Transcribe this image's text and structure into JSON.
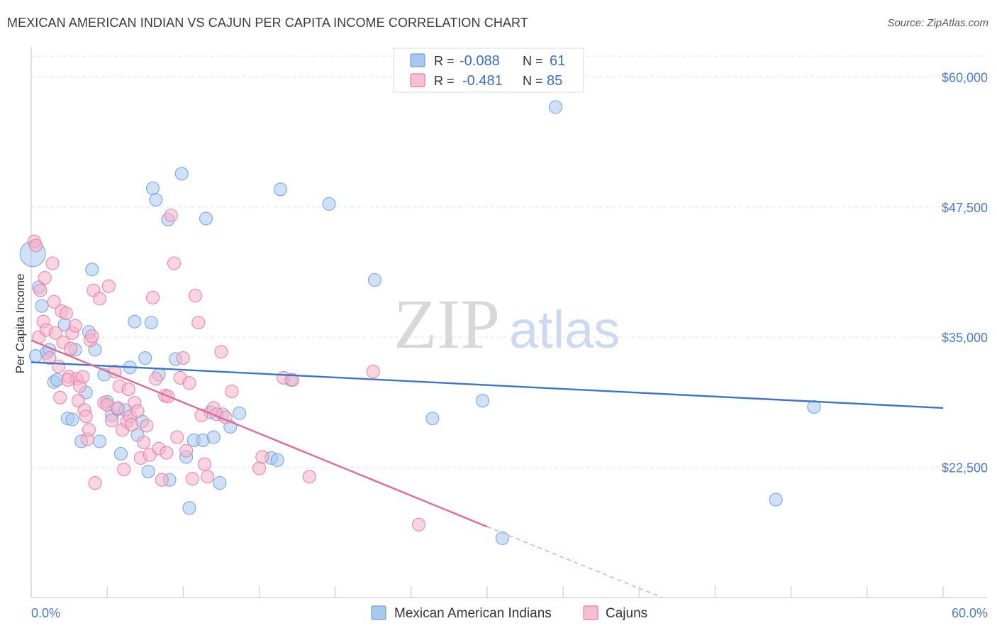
{
  "title": "MEXICAN AMERICAN INDIAN VS CAJUN PER CAPITA INCOME CORRELATION CHART",
  "source": "Source: ZipAtlas.com",
  "watermark": {
    "zip": "ZIP",
    "atlas": "atlas"
  },
  "legend": {
    "rows": [
      {
        "r_label": "R = ",
        "r_value": "-0.088",
        "n_label": "N = ",
        "n_value": "61",
        "color": "#a8c8f0"
      },
      {
        "r_label": "R = ",
        "r_value": "-0.481",
        "n_label": "N = ",
        "n_value": "85",
        "color": "#f5b3c8"
      }
    ]
  },
  "bottom_legend": [
    "Mexican American Indians",
    "Cajuns"
  ],
  "chart_data": {
    "type": "scatter",
    "title": "MEXICAN AMERICAN INDIAN VS CAJUN PER CAPITA INCOME CORRELATION CHART",
    "xlabel": "",
    "ylabel": "Per Capita Income",
    "xlim": [
      0,
      60
    ],
    "ylim": [
      10000,
      62000
    ],
    "x_tick_labels": [
      "0.0%",
      "60.0%"
    ],
    "y_ticks": [
      22500,
      35000,
      47500,
      60000
    ],
    "y_tick_labels": [
      "$22,500",
      "$35,000",
      "$47,500",
      "$60,000"
    ],
    "grid": true,
    "legend_position": "top-center",
    "series": [
      {
        "name": "Mexican American Indians",
        "color": "#6fa0e0",
        "fill": "#a8c8f0",
        "trend": {
          "x": [
            0,
            60
          ],
          "y": [
            32600,
            28200
          ]
        },
        "points": [
          [
            0.1,
            43000
          ],
          [
            0.5,
            39800
          ],
          [
            0.7,
            38000
          ],
          [
            1.0,
            33500
          ],
          [
            1.2,
            33800
          ],
          [
            1.5,
            30700
          ],
          [
            1.7,
            30900
          ],
          [
            2.2,
            36200
          ],
          [
            2.4,
            27200
          ],
          [
            2.7,
            27100
          ],
          [
            2.9,
            33800
          ],
          [
            3.3,
            25000
          ],
          [
            3.6,
            29700
          ],
          [
            3.8,
            35500
          ],
          [
            4.0,
            41500
          ],
          [
            4.2,
            33800
          ],
          [
            4.5,
            25000
          ],
          [
            4.8,
            31400
          ],
          [
            5.0,
            28800
          ],
          [
            5.3,
            27500
          ],
          [
            5.7,
            28100
          ],
          [
            5.9,
            23800
          ],
          [
            6.2,
            28000
          ],
          [
            6.5,
            32100
          ],
          [
            6.8,
            36500
          ],
          [
            7.0,
            25600
          ],
          [
            7.3,
            26900
          ],
          [
            7.5,
            33000
          ],
          [
            7.7,
            22100
          ],
          [
            7.9,
            36400
          ],
          [
            8.0,
            49300
          ],
          [
            8.2,
            48200
          ],
          [
            8.4,
            31400
          ],
          [
            9.0,
            46300
          ],
          [
            9.1,
            21300
          ],
          [
            9.5,
            32900
          ],
          [
            9.9,
            50700
          ],
          [
            10.2,
            23500
          ],
          [
            10.4,
            18600
          ],
          [
            10.7,
            25100
          ],
          [
            11.3,
            25100
          ],
          [
            11.5,
            46400
          ],
          [
            11.8,
            27800
          ],
          [
            12.0,
            25400
          ],
          [
            12.4,
            21000
          ],
          [
            12.6,
            27600
          ],
          [
            13.1,
            26400
          ],
          [
            13.7,
            27700
          ],
          [
            15.8,
            23400
          ],
          [
            16.2,
            23200
          ],
          [
            16.4,
            49200
          ],
          [
            17.1,
            30900
          ],
          [
            19.6,
            47800
          ],
          [
            22.6,
            40500
          ],
          [
            26.4,
            27200
          ],
          [
            29.7,
            28900
          ],
          [
            34.5,
            57100
          ],
          [
            51.5,
            28300
          ],
          [
            49.0,
            19400
          ],
          [
            31.0,
            15700
          ],
          [
            0.3,
            33200
          ]
        ]
      },
      {
        "name": "Cajuns",
        "color": "#e87aa0",
        "fill": "#f5b3c8",
        "trend": {
          "x": [
            0,
            30
          ],
          "y": [
            34700,
            16800
          ]
        },
        "trend_dashed": {
          "x": [
            30,
            41.5
          ],
          "y": [
            16800,
            10000
          ]
        },
        "points": [
          [
            0.2,
            44200
          ],
          [
            0.3,
            43800
          ],
          [
            0.5,
            35000
          ],
          [
            0.6,
            39500
          ],
          [
            0.8,
            36500
          ],
          [
            0.9,
            40700
          ],
          [
            1.0,
            35700
          ],
          [
            1.2,
            33000
          ],
          [
            1.4,
            42100
          ],
          [
            1.5,
            38400
          ],
          [
            1.6,
            35400
          ],
          [
            1.8,
            32200
          ],
          [
            1.9,
            29200
          ],
          [
            2.0,
            37500
          ],
          [
            2.1,
            34500
          ],
          [
            2.3,
            37300
          ],
          [
            2.5,
            31200
          ],
          [
            2.6,
            33900
          ],
          [
            2.7,
            35400
          ],
          [
            2.9,
            36100
          ],
          [
            3.0,
            31000
          ],
          [
            3.1,
            28900
          ],
          [
            3.2,
            30300
          ],
          [
            3.4,
            31200
          ],
          [
            3.5,
            28000
          ],
          [
            3.6,
            27400
          ],
          [
            3.7,
            25200
          ],
          [
            3.8,
            26100
          ],
          [
            3.9,
            34700
          ],
          [
            4.0,
            35100
          ],
          [
            4.1,
            39500
          ],
          [
            4.2,
            21000
          ],
          [
            4.5,
            38700
          ],
          [
            4.8,
            28700
          ],
          [
            5.0,
            28500
          ],
          [
            5.1,
            39900
          ],
          [
            5.3,
            27000
          ],
          [
            5.5,
            31700
          ],
          [
            5.7,
            28200
          ],
          [
            5.8,
            30300
          ],
          [
            6.0,
            26100
          ],
          [
            6.1,
            22300
          ],
          [
            6.3,
            26900
          ],
          [
            6.5,
            27400
          ],
          [
            6.6,
            26600
          ],
          [
            6.8,
            28700
          ],
          [
            7.0,
            27900
          ],
          [
            7.2,
            23400
          ],
          [
            7.4,
            24900
          ],
          [
            7.6,
            26500
          ],
          [
            7.8,
            23700
          ],
          [
            8.0,
            38800
          ],
          [
            8.2,
            31000
          ],
          [
            8.4,
            24300
          ],
          [
            8.6,
            21300
          ],
          [
            8.8,
            29400
          ],
          [
            9.0,
            29300
          ],
          [
            9.2,
            46700
          ],
          [
            9.4,
            42100
          ],
          [
            9.6,
            25400
          ],
          [
            9.8,
            31100
          ],
          [
            10.0,
            33000
          ],
          [
            10.2,
            24100
          ],
          [
            10.4,
            30600
          ],
          [
            10.6,
            21400
          ],
          [
            10.8,
            39000
          ],
          [
            11.0,
            36400
          ],
          [
            11.2,
            27500
          ],
          [
            11.4,
            22800
          ],
          [
            11.6,
            21600
          ],
          [
            12.0,
            28200
          ],
          [
            12.2,
            27600
          ],
          [
            12.5,
            33600
          ],
          [
            12.8,
            27300
          ],
          [
            13.2,
            29800
          ],
          [
            15.0,
            22400
          ],
          [
            15.2,
            23500
          ],
          [
            16.6,
            31100
          ],
          [
            17.2,
            30900
          ],
          [
            18.3,
            21600
          ],
          [
            22.5,
            31700
          ],
          [
            25.5,
            17000
          ],
          [
            8.9,
            23900
          ],
          [
            6.4,
            30000
          ],
          [
            2.4,
            30900
          ]
        ]
      }
    ]
  }
}
